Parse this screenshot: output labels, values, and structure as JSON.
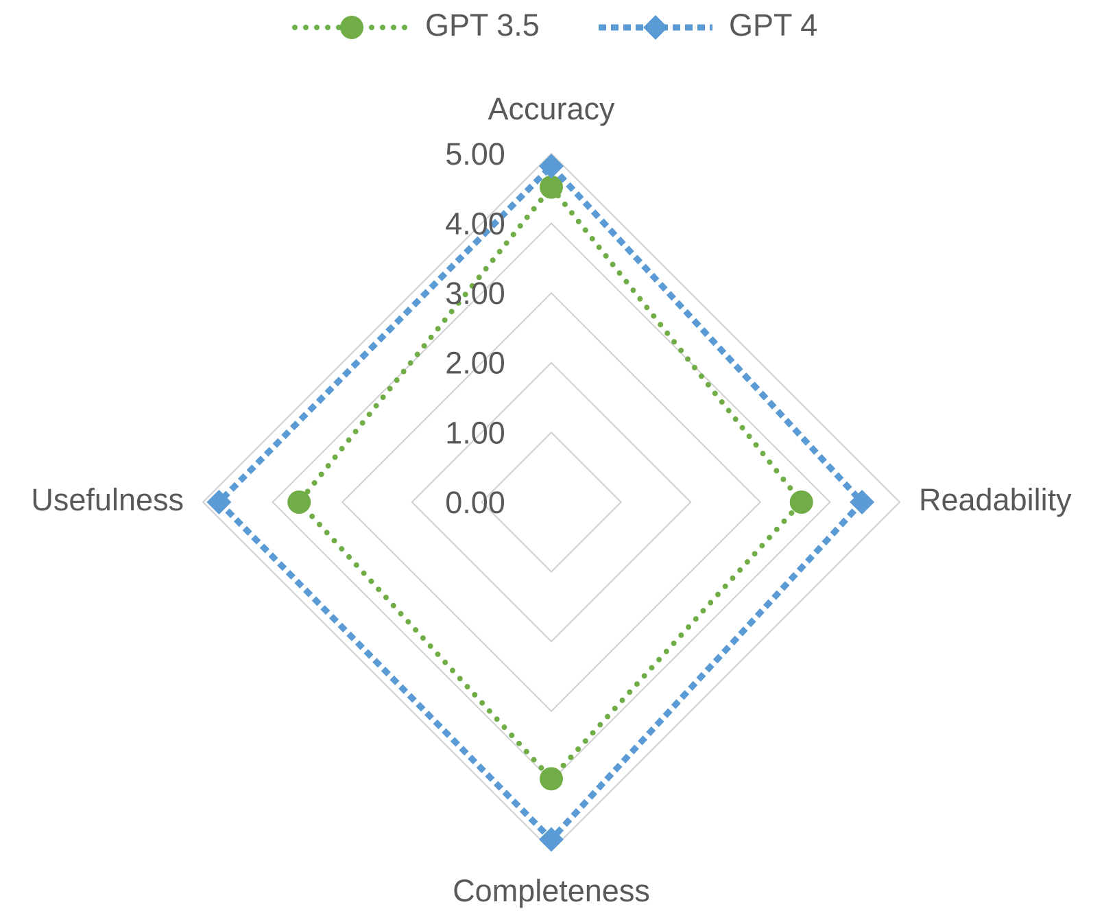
{
  "chart_data": {
    "type": "radar",
    "categories": [
      "Accuracy",
      "Readability",
      "Completeness",
      "Usefulness"
    ],
    "series": [
      {
        "name": "GPT 3.5",
        "color": "#70ad47",
        "values": [
          4.52,
          3.59,
          3.97,
          3.62
        ]
      },
      {
        "name": "GPT 4",
        "color": "#5b9bd5",
        "values": [
          4.82,
          4.46,
          4.84,
          4.77
        ]
      }
    ],
    "rlim": [
      0,
      5
    ],
    "rticks": [
      {
        "value": 0,
        "label": "0.00"
      },
      {
        "value": 1,
        "label": "1.00"
      },
      {
        "value": 2,
        "label": "2.00"
      },
      {
        "value": 3,
        "label": "3.00"
      },
      {
        "value": 4,
        "label": "4.00"
      },
      {
        "value": 5,
        "label": "5.00"
      }
    ],
    "grid": true,
    "legend": "top"
  }
}
